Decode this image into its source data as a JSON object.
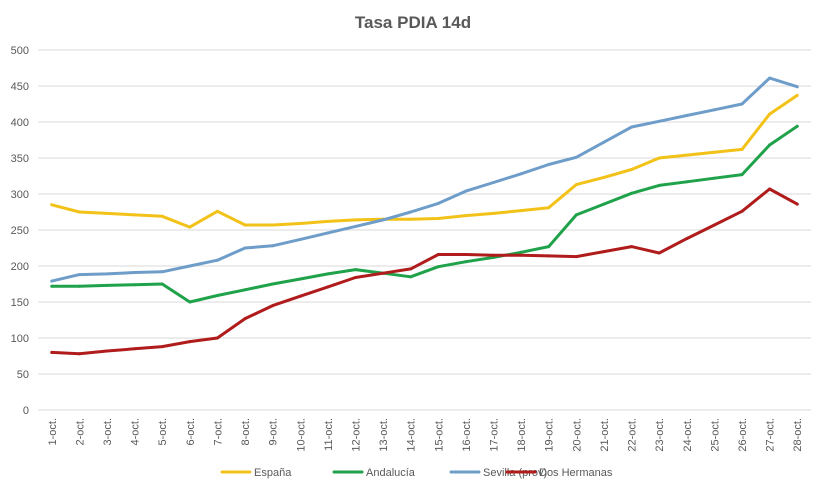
{
  "chart_data": {
    "type": "line",
    "title": "Tasa PDIA 14d",
    "xlabel": "",
    "ylabel": "",
    "ylim": [
      0,
      500
    ],
    "yticks": [
      0,
      50,
      100,
      150,
      200,
      250,
      300,
      350,
      400,
      450,
      500
    ],
    "grid": true,
    "legend_position": "bottom",
    "categories": [
      "1-oct.",
      "2-oct.",
      "3-oct.",
      "4-oct.",
      "5-oct.",
      "6-oct.",
      "7-oct.",
      "8-oct.",
      "9-oct.",
      "10-oct.",
      "11-oct.",
      "12-oct.",
      "13-oct.",
      "14-oct.",
      "15-oct.",
      "16-oct.",
      "17-oct.",
      "18-oct.",
      "19-oct.",
      "20-oct.",
      "21-oct.",
      "22-oct.",
      "23-oct.",
      "24-oct.",
      "25-oct.",
      "26-oct.",
      "27-oct.",
      "28-oct."
    ],
    "series": [
      {
        "name": "España",
        "color": "#F2C218",
        "values": [
          285,
          275,
          273,
          271,
          269,
          254,
          276,
          257,
          257,
          259,
          262,
          264,
          265,
          265,
          266,
          270,
          273,
          277,
          281,
          313,
          323,
          334,
          350,
          354,
          358,
          362,
          411,
          437
        ]
      },
      {
        "name": "Andalucía",
        "color": "#1FA24A",
        "values": [
          172,
          172,
          173,
          174,
          175,
          150,
          159,
          167,
          175,
          182,
          189,
          195,
          190,
          185,
          199,
          206,
          212,
          219,
          227,
          271,
          286,
          301,
          312,
          317,
          322,
          327,
          368,
          394
        ]
      },
      {
        "name": "Sevilla (prov)",
        "color": "#6E9DC9",
        "values": [
          179,
          188,
          189,
          191,
          192,
          200,
          208,
          225,
          228,
          237,
          246,
          255,
          264,
          275,
          287,
          304,
          316,
          328,
          341,
          351,
          372,
          393,
          401,
          409,
          417,
          425,
          461,
          449
        ]
      },
      {
        "name": "Dos Hermanas",
        "color": "#B01C1C",
        "values": [
          80,
          78,
          82,
          85,
          88,
          95,
          100,
          127,
          145,
          158,
          171,
          184,
          190,
          196,
          216,
          216,
          215,
          215,
          214,
          213,
          220,
          227,
          218,
          238,
          257,
          276,
          307,
          286
        ]
      }
    ]
  }
}
